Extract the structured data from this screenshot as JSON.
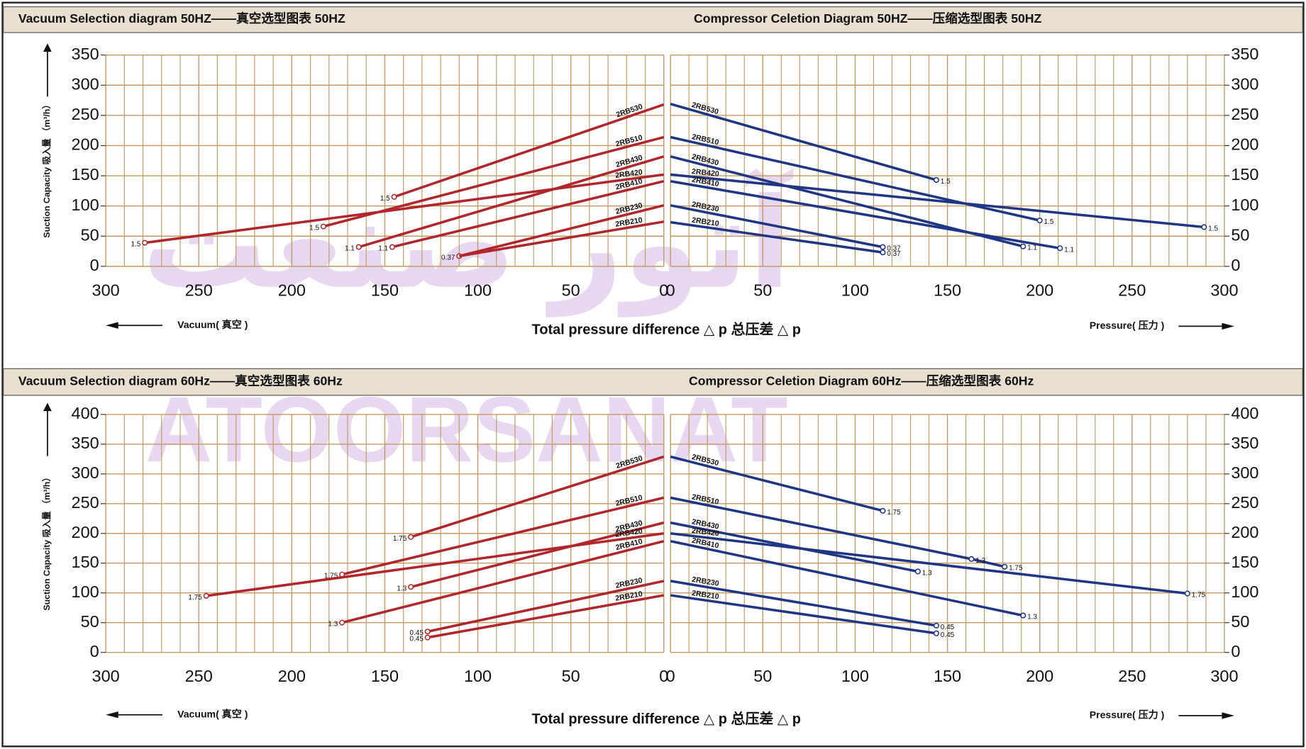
{
  "watermark": {
    "latin": "ATOORSANAT",
    "persian": "آتور صنعت"
  },
  "chart_data": [
    {
      "type": "line",
      "title": "Vacuum Selection diagram 50HZ——真空选型图表 50HZ",
      "ylabel": "Suction Capacity 吸入量 （m³/h）",
      "xlabel": "Total pressure difference △ p 总压差 △ p",
      "direction_label": "Vacuum( 真空 )",
      "xlim": [
        300,
        0
      ],
      "ylim": [
        0,
        350
      ],
      "xticks": [
        300,
        250,
        200,
        150,
        100,
        50,
        0
      ],
      "yticks": [
        0,
        50,
        100,
        150,
        200,
        250,
        300,
        350
      ],
      "grid": true,
      "series": [
        {
          "name": "2RB530",
          "color": "#b0262a",
          "x": [
            145,
            0
          ],
          "values": [
            115,
            268
          ],
          "point_labels": [
            "1.5",
            null
          ]
        },
        {
          "name": "2RB510",
          "color": "#b0262a",
          "x": [
            183,
            0
          ],
          "values": [
            66,
            214
          ],
          "point_labels": [
            "1.5",
            null
          ]
        },
        {
          "name": "2RB430",
          "color": "#b0262a",
          "x": [
            164,
            0
          ],
          "values": [
            32,
            182
          ],
          "point_labels": [
            "1.1",
            null
          ]
        },
        {
          "name": "2RB420",
          "color": "#b0262a",
          "x": [
            279,
            0
          ],
          "values": [
            39,
            152
          ],
          "point_labels": [
            "1.5",
            null
          ]
        },
        {
          "name": "2RB410",
          "color": "#b0262a",
          "x": [
            146,
            0
          ],
          "values": [
            32,
            141
          ],
          "point_labels": [
            "1.1",
            null
          ]
        },
        {
          "name": "2RB230",
          "color": "#b0262a",
          "x": [
            110,
            0
          ],
          "values": [
            17,
            101
          ],
          "point_labels": [
            "0.37",
            null
          ]
        },
        {
          "name": "2RB210",
          "color": "#b0262a",
          "x": [
            110,
            0
          ],
          "values": [
            17,
            74
          ],
          "point_labels": [
            null,
            null
          ]
        }
      ]
    },
    {
      "type": "line",
      "title": "Compressor Celetion Diagram 50HZ——压缩选型图表 50HZ",
      "direction_label": "Pressure( 压力 )",
      "xlim": [
        0,
        300
      ],
      "ylim": [
        0,
        350
      ],
      "xticks": [
        0,
        50,
        100,
        150,
        200,
        250,
        300
      ],
      "yticks": [
        0,
        50,
        100,
        150,
        200,
        250,
        300,
        350
      ],
      "grid": true,
      "series": [
        {
          "name": "2RB530",
          "color": "#1f3685",
          "x": [
            0,
            144
          ],
          "values": [
            269,
            143
          ],
          "point_labels": [
            null,
            "1.5"
          ]
        },
        {
          "name": "2RB510",
          "color": "#1f3685",
          "x": [
            0,
            200
          ],
          "values": [
            214,
            76
          ],
          "point_labels": [
            null,
            "1.5"
          ]
        },
        {
          "name": "2RB430",
          "color": "#1f3685",
          "x": [
            0,
            191
          ],
          "values": [
            182,
            33
          ],
          "point_labels": [
            null,
            "1.1"
          ]
        },
        {
          "name": "2RB420",
          "color": "#1f3685",
          "x": [
            0,
            289
          ],
          "values": [
            152,
            65
          ],
          "point_labels": [
            null,
            "1.5"
          ]
        },
        {
          "name": "2RB410",
          "color": "#1f3685",
          "x": [
            0,
            211
          ],
          "values": [
            141,
            30
          ],
          "point_labels": [
            null,
            "1.1"
          ]
        },
        {
          "name": "2RB230",
          "color": "#1f3685",
          "x": [
            0,
            115
          ],
          "values": [
            101,
            32
          ],
          "point_labels": [
            null,
            "0.37"
          ]
        },
        {
          "name": "2RB210",
          "color": "#1f3685",
          "x": [
            0,
            115
          ],
          "values": [
            73,
            23
          ],
          "point_labels": [
            null,
            "0.37"
          ]
        }
      ]
    },
    {
      "type": "line",
      "title": "Vacuum Selection diagram 60Hz——真空选型图表 60Hz",
      "ylabel": "Suction Capacity 吸入量 （m³/h）",
      "xlabel": "Total pressure difference △ p 总压差 △ p",
      "direction_label": "Vacuum( 真空 )",
      "xlim": [
        300,
        0
      ],
      "ylim": [
        0,
        400
      ],
      "xticks": [
        300,
        250,
        200,
        150,
        100,
        50,
        0
      ],
      "yticks": [
        0,
        50,
        100,
        150,
        200,
        250,
        300,
        350,
        400
      ],
      "grid": true,
      "series": [
        {
          "name": "2RB530",
          "color": "#b0262a",
          "x": [
            136,
            0
          ],
          "values": [
            194,
            329
          ],
          "point_labels": [
            "1.75",
            null
          ]
        },
        {
          "name": "2RB510",
          "color": "#b0262a",
          "x": [
            173,
            0
          ],
          "values": [
            131,
            260
          ],
          "point_labels": [
            "1.75",
            null
          ]
        },
        {
          "name": "2RB430",
          "color": "#b0262a",
          "x": [
            136,
            0
          ],
          "values": [
            110,
            218
          ],
          "point_labels": [
            "1.3",
            null
          ]
        },
        {
          "name": "2RB420",
          "color": "#b0262a",
          "x": [
            246,
            0
          ],
          "values": [
            95,
            200
          ],
          "point_labels": [
            "1.75",
            null
          ]
        },
        {
          "name": "2RB410",
          "color": "#b0262a",
          "x": [
            173,
            0
          ],
          "values": [
            50,
            187
          ],
          "point_labels": [
            "1.3",
            null
          ]
        },
        {
          "name": "2RB230",
          "color": "#b0262a",
          "x": [
            127,
            0
          ],
          "values": [
            35,
            120
          ],
          "point_labels": [
            "0.45",
            null
          ]
        },
        {
          "name": "2RB210",
          "color": "#b0262a",
          "x": [
            127,
            0
          ],
          "values": [
            25,
            96
          ],
          "point_labels": [
            "0.45",
            null
          ]
        }
      ]
    },
    {
      "type": "line",
      "title": "Compressor Celetion Diagram 60Hz——压缩选型图表 60Hz",
      "direction_label": "Pressure( 压力 )",
      "xlim": [
        0,
        300
      ],
      "ylim": [
        0,
        400
      ],
      "xticks": [
        0,
        50,
        100,
        150,
        200,
        250,
        300
      ],
      "yticks": [
        0,
        50,
        100,
        150,
        200,
        250,
        300,
        350,
        400
      ],
      "grid": true,
      "series": [
        {
          "name": "2RB530",
          "color": "#1f3685",
          "x": [
            0,
            115
          ],
          "values": [
            329,
            238
          ],
          "point_labels": [
            null,
            "1.75"
          ]
        },
        {
          "name": "2RB510",
          "color": "#1f3685",
          "x": [
            0,
            163,
            181
          ],
          "values": [
            260,
            157,
            144
          ],
          "point_labels": [
            null,
            "1.3",
            "1.75"
          ]
        },
        {
          "name": "2RB430",
          "color": "#1f3685",
          "x": [
            0,
            134
          ],
          "values": [
            218,
            136
          ],
          "point_labels": [
            null,
            "1.3"
          ]
        },
        {
          "name": "2RB420",
          "color": "#1f3685",
          "x": [
            0,
            280
          ],
          "values": [
            200,
            99
          ],
          "point_labels": [
            null,
            "1.75"
          ]
        },
        {
          "name": "2RB410",
          "color": "#1f3685",
          "x": [
            0,
            191
          ],
          "values": [
            187,
            62
          ],
          "point_labels": [
            null,
            "1.3"
          ]
        },
        {
          "name": "2RB230",
          "color": "#1f3685",
          "x": [
            0,
            144
          ],
          "values": [
            120,
            45
          ],
          "point_labels": [
            null,
            "0.45"
          ]
        },
        {
          "name": "2RB210",
          "color": "#1f3685",
          "x": [
            0,
            144
          ],
          "values": [
            96,
            32
          ],
          "point_labels": [
            null,
            "0.45"
          ]
        }
      ]
    }
  ]
}
